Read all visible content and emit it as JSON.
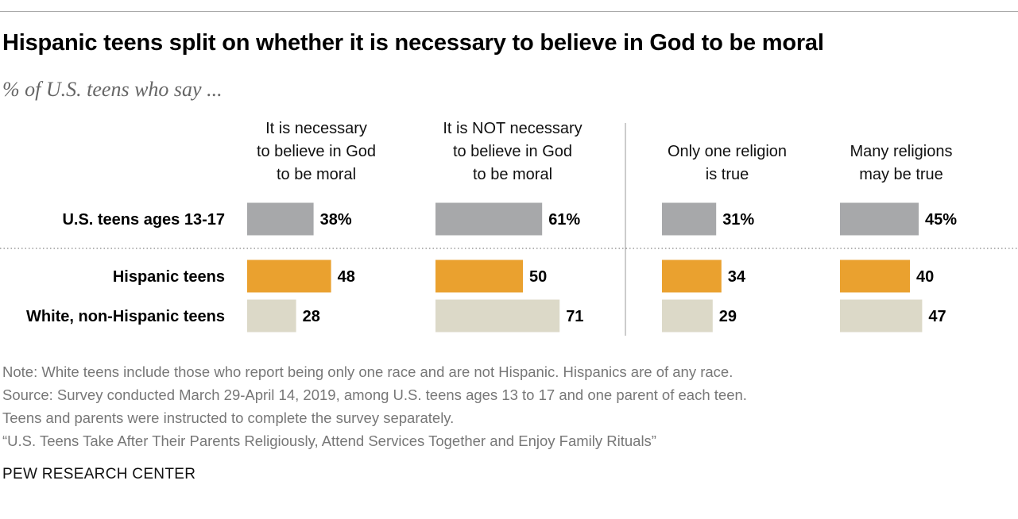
{
  "title": "Hispanic teens split on whether it is necessary to believe in God to be moral",
  "subtitle": "% of U.S. teens who say ...",
  "notes": [
    "Note: White teens include those who report being only one race and are not Hispanic. Hispanics are of any race.",
    "Source: Survey conducted March 29-April 14, 2019, among U.S. teens ages 13 to 17 and one parent of each teen.",
    "Teens and parents were instructed to complete the survey separately.",
    "“U.S. Teens Take After Their Parents Religiously, Attend Services Together and Enjoy Family Rituals”"
  ],
  "source_org": "PEW RESEARCH CENTER",
  "colors": {
    "all_teens": "#a7a8aa",
    "hispanic": "#eaa12f",
    "white": "#dcd9c8",
    "dotted_rule": "#9a9a9a",
    "divider": "#999999"
  },
  "chart_data": {
    "type": "bar",
    "orientation": "horizontal",
    "categories": [
      "U.S. teens ages 13-17",
      "Hispanic teens",
      "White, non-Hispanic teens"
    ],
    "series": [
      {
        "name": "It is necessary to believe in God to be moral",
        "header_lines": [
          "It is necessary",
          "to believe in God",
          "to be moral"
        ],
        "values": [
          38,
          48,
          28
        ],
        "labels": [
          "38%",
          "48",
          "28"
        ]
      },
      {
        "name": "It is NOT necessary to believe in God to be moral",
        "header_lines": [
          "It is NOT necessary",
          "to believe in God",
          "to be moral"
        ],
        "values": [
          61,
          50,
          71
        ],
        "labels": [
          "61%",
          "50",
          "71"
        ]
      },
      {
        "name": "Only one religion is true",
        "header_lines": [
          "Only one religion",
          "is true"
        ],
        "values": [
          31,
          34,
          29
        ],
        "labels": [
          "31%",
          "34",
          "29"
        ]
      },
      {
        "name": "Many religions may be true",
        "header_lines": [
          "Many religions",
          "may be true"
        ],
        "values": [
          45,
          40,
          47
        ],
        "labels": [
          "45%",
          "40",
          "47"
        ]
      }
    ]
  }
}
